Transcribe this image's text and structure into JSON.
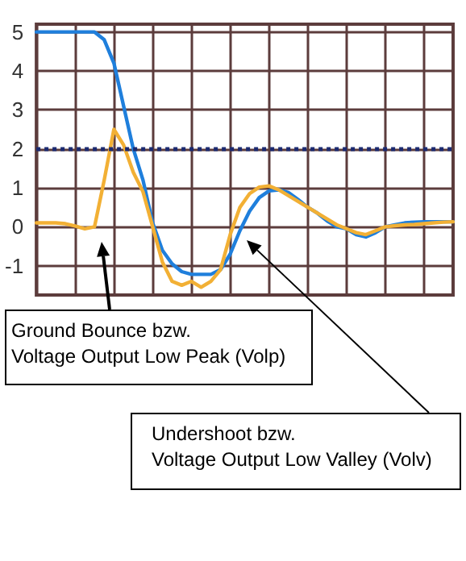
{
  "chart_data": {
    "type": "line",
    "categories": [
      null,
      null,
      null,
      null,
      null,
      null,
      null,
      null,
      null,
      null,
      null,
      null,
      null,
      null,
      null,
      null,
      null,
      null,
      null,
      null,
      null,
      null,
      null,
      null,
      null,
      null,
      null,
      null,
      null,
      null,
      null,
      null,
      null,
      null,
      null,
      null,
      null,
      null,
      null,
      null,
      null,
      null,
      null,
      null
    ],
    "series": [
      {
        "color": "#1f7fdc",
        "values": [
          5,
          5,
          5,
          5,
          5,
          5,
          5,
          4.8,
          4.2,
          3.1,
          2.0,
          1.2,
          0.1,
          -0.6,
          -0.95,
          -1.15,
          -1.22,
          -1.22,
          -1.22,
          -1.1,
          -0.7,
          -0.1,
          0.4,
          0.75,
          0.92,
          0.95,
          0.88,
          0.7,
          0.5,
          0.35,
          0.15,
          0.0,
          -0.05,
          -0.2,
          -0.26,
          -0.15,
          0,
          0.05,
          0.1,
          0.12,
          0.13,
          0.13,
          0.13,
          0.13
        ]
      },
      {
        "color": "#f2b035",
        "values": [
          0.1,
          0.1,
          0.1,
          0.08,
          0.02,
          -0.05,
          0.0,
          1.2,
          2.5,
          2.1,
          1.4,
          0.9,
          0.0,
          -0.9,
          -1.4,
          -1.5,
          -1.4,
          -1.55,
          -1.4,
          -1.1,
          -0.2,
          0.5,
          0.85,
          1.02,
          1.05,
          0.95,
          0.8,
          0.65,
          0.5,
          0.35,
          0.2,
          0.05,
          -0.05,
          -0.15,
          -0.2,
          -0.1,
          0,
          0.03,
          0.05,
          0.06,
          0.08,
          0.1,
          0.12,
          0.13
        ]
      }
    ],
    "ylim": [
      -1.75,
      5.2
    ],
    "yticks": [
      -1,
      0,
      1,
      2,
      3,
      4,
      5
    ],
    "grid": true,
    "line_style": "solid",
    "tick_labels": "y",
    "ref_lines": [
      {
        "axis": "y",
        "value": 2,
        "color": "#1c2a70",
        "line_style": "dotted"
      }
    ],
    "annotations": [
      "Ground Bounce bzw.\nVoltage Output Low Peak (Volp)",
      "Undershoot bzw.\nVoltage Output Low Valley (Volv)"
    ]
  }
}
